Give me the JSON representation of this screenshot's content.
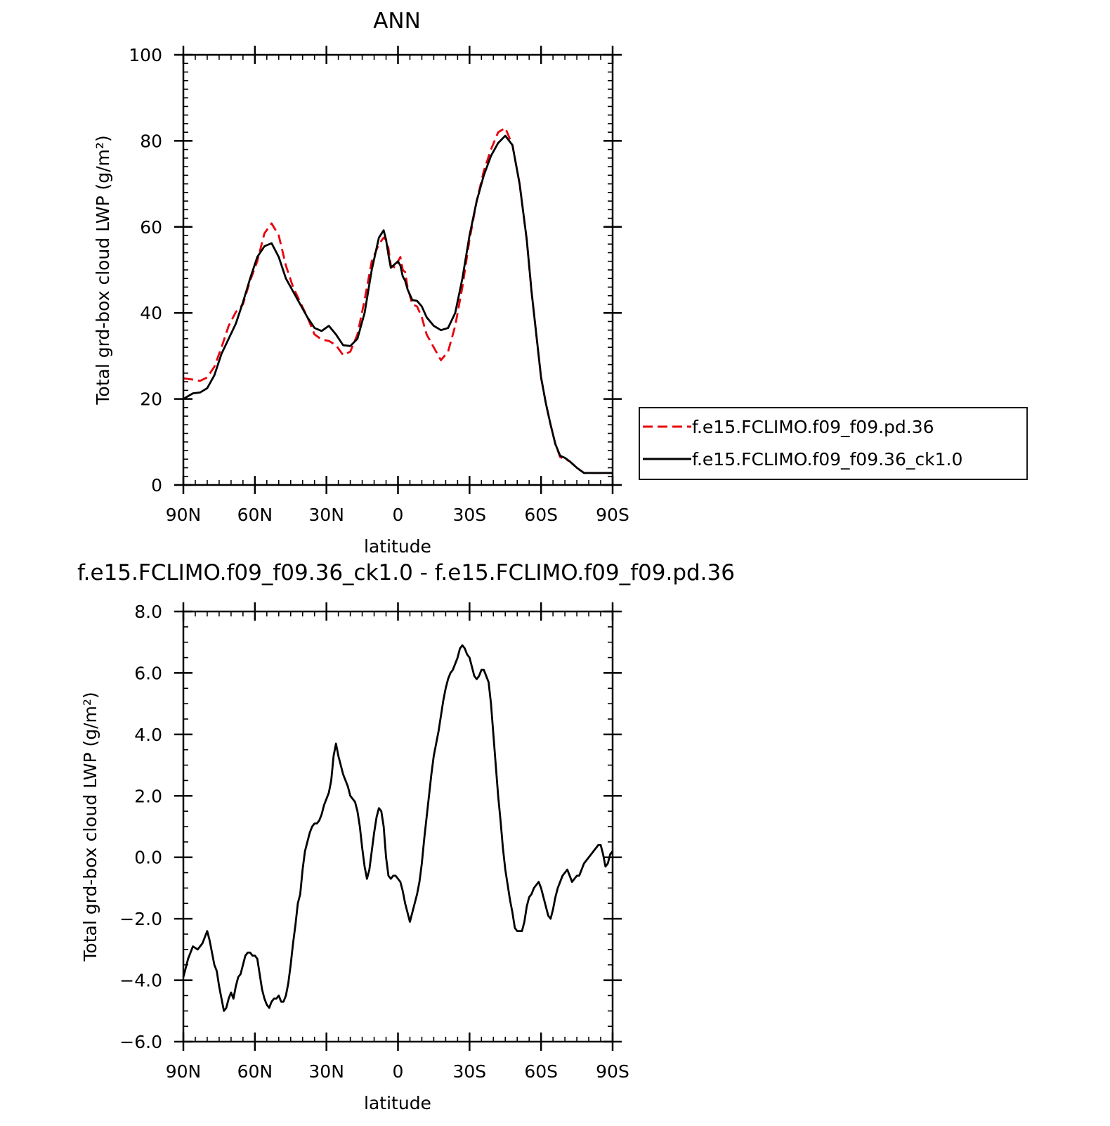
{
  "chart_data": [
    {
      "type": "line",
      "title": "ANN",
      "xlabel": "latitude",
      "ylabel": "Total grd-box cloud LWP (g/m²)",
      "x_tick_labels": [
        "90N",
        "60N",
        "30N",
        "0",
        "30S",
        "60S",
        "90S"
      ],
      "x_ticks": [
        90,
        60,
        30,
        0,
        -30,
        -60,
        -90
      ],
      "xlim": [
        90,
        -90
      ],
      "ylim": [
        0,
        100
      ],
      "y_ticks": [
        0,
        20,
        40,
        60,
        80,
        100
      ],
      "y_tick_labels": [
        "0",
        "20",
        "40",
        "60",
        "80",
        "100"
      ],
      "legend_position": "right",
      "series": [
        {
          "name": "f.e15.FCLIMO.f09_f09.pd.36",
          "color": "#e8000b",
          "style": "dashed",
          "x": [
            90,
            86,
            83,
            80,
            77,
            74,
            71,
            68,
            65,
            62,
            59,
            56,
            53,
            50,
            47,
            44,
            41,
            38,
            35,
            32,
            29,
            26,
            23,
            20,
            17,
            14,
            11,
            8,
            6,
            5,
            4,
            3,
            1,
            0,
            -1,
            -2,
            -3,
            -4,
            -6,
            -8,
            -10,
            -12,
            -15,
            -18,
            -21,
            -24,
            -27,
            -30,
            -33,
            -36,
            -39,
            -42,
            -45,
            -48,
            -51,
            -54,
            -56,
            -58,
            -60,
            -62,
            -64,
            -66,
            -68,
            -70,
            -72,
            -75,
            -78,
            -81,
            -84,
            -87,
            -90
          ],
          "y": [
            24.8,
            24.5,
            24.2,
            25.0,
            27.5,
            32.0,
            37.0,
            40.2,
            42.0,
            47.5,
            52.0,
            58.5,
            60.8,
            58.0,
            51.0,
            46.0,
            42.5,
            39.0,
            35.0,
            33.8,
            33.5,
            32.5,
            30.2,
            31.0,
            35.0,
            43.0,
            52.0,
            56.0,
            57.5,
            57.0,
            55.0,
            51.0,
            50.5,
            52.0,
            53.0,
            50.0,
            49.5,
            46.0,
            42.0,
            41.5,
            39.0,
            35.0,
            32.0,
            29.0,
            31.0,
            37.0,
            46.0,
            57.0,
            66.0,
            73.0,
            78.0,
            82.0,
            83.0,
            79.0,
            70.0,
            57.0,
            45.0,
            35.0,
            25.0,
            19.0,
            14.0,
            9.5,
            6.5,
            6.0,
            5.5,
            4.0,
            2.8,
            2.8,
            2.8,
            2.8,
            2.8
          ]
        },
        {
          "name": "f.e15.FCLIMO.f09_f09.36_ck1.0",
          "color": "#000000",
          "style": "solid",
          "x": [
            90,
            86,
            83,
            80,
            77,
            74,
            71,
            68,
            65,
            62,
            59,
            56,
            53,
            50,
            47,
            44,
            41,
            38,
            35,
            32,
            29,
            26,
            23,
            20,
            17,
            14,
            11,
            8,
            6,
            5,
            4,
            3,
            1,
            0,
            -1,
            -2,
            -3,
            -4,
            -6,
            -8,
            -10,
            -12,
            -15,
            -18,
            -21,
            -24,
            -27,
            -30,
            -33,
            -36,
            -39,
            -42,
            -45,
            -48,
            -51,
            -54,
            -56,
            -58,
            -60,
            -62,
            -64,
            -66,
            -68,
            -70,
            -72,
            -75,
            -78,
            -81,
            -84,
            -87,
            -90
          ],
          "y": [
            20.0,
            21.3,
            21.5,
            22.5,
            25.5,
            30.5,
            34.0,
            37.5,
            42.5,
            48.0,
            53.0,
            55.5,
            56.2,
            53.0,
            48.0,
            45.0,
            42.0,
            39.0,
            36.5,
            35.8,
            37.0,
            35.0,
            32.5,
            32.3,
            34.0,
            40.0,
            50.0,
            57.5,
            59.2,
            57.0,
            53.5,
            50.5,
            51.5,
            52.0,
            51.0,
            48.5,
            47.5,
            45.5,
            43.0,
            42.8,
            41.5,
            39.0,
            37.0,
            36.0,
            36.5,
            40.0,
            48.0,
            58.0,
            66.0,
            72.0,
            76.5,
            79.5,
            81.2,
            79.0,
            70.0,
            57.0,
            45.0,
            35.0,
            25.0,
            19.0,
            14.0,
            9.5,
            6.8,
            6.3,
            5.5,
            4.0,
            2.8,
            2.8,
            2.8,
            2.8,
            2.8
          ]
        }
      ]
    },
    {
      "type": "line",
      "title": "f.e15.FCLIMO.f09_f09.36_ck1.0 - f.e15.FCLIMO.f09_f09.pd.36",
      "xlabel": "latitude",
      "ylabel": "Total grd-box cloud LWP (g/m²)",
      "x_tick_labels": [
        "90N",
        "60N",
        "30N",
        "0",
        "30S",
        "60S",
        "90S"
      ],
      "x_ticks": [
        90,
        60,
        30,
        0,
        -30,
        -60,
        -90
      ],
      "xlim": [
        90,
        -90
      ],
      "ylim": [
        -6,
        8
      ],
      "y_ticks": [
        -6,
        -4,
        -2,
        0,
        2,
        4,
        6,
        8
      ],
      "y_tick_labels": [
        "−6.0",
        "−4.0",
        "−2.0",
        "0.0",
        "2.0",
        "4.0",
        "6.0",
        "8.0"
      ],
      "series": [
        {
          "color": "#000000",
          "style": "solid",
          "x": [
            90,
            88,
            86,
            84,
            82,
            81,
            80,
            79,
            78,
            77,
            76,
            75,
            74,
            73,
            72,
            71,
            70,
            69,
            68,
            67,
            66,
            65,
            64,
            63,
            62,
            61,
            60,
            59,
            58,
            57,
            56,
            55,
            54,
            53,
            52,
            51,
            50,
            49,
            48,
            47,
            46,
            45,
            44,
            43,
            42,
            41,
            40,
            39,
            38,
            37,
            36,
            35,
            34,
            33,
            32,
            31,
            30,
            29,
            28,
            27,
            26,
            25,
            24,
            23,
            22,
            21,
            20,
            19,
            18,
            17,
            16,
            15,
            14,
            13,
            12,
            11,
            10,
            9,
            8,
            7,
            6,
            5,
            4,
            3,
            2,
            1,
            0,
            -1,
            -2,
            -3,
            -4,
            -5,
            -6,
            -7,
            -8,
            -9,
            -10,
            -11,
            -12,
            -13,
            -14,
            -15,
            -16,
            -17,
            -18,
            -19,
            -20,
            -21,
            -22,
            -23,
            -24,
            -25,
            -26,
            -27,
            -28,
            -29,
            -30,
            -31,
            -32,
            -33,
            -34,
            -35,
            -36,
            -37,
            -38,
            -39,
            -40,
            -41,
            -42,
            -43,
            -44,
            -45,
            -46,
            -47,
            -48,
            -49,
            -50,
            -51,
            -52,
            -53,
            -54,
            -55,
            -56,
            -57,
            -58,
            -59,
            -60,
            -61,
            -62,
            -63,
            -64,
            -65,
            -66,
            -67,
            -68,
            -69,
            -70,
            -71,
            -72,
            -73,
            -74,
            -75,
            -76,
            -77,
            -78,
            -79,
            -80,
            -81,
            -82,
            -83,
            -84,
            -85,
            -86,
            -87,
            -88,
            -89,
            -90
          ],
          "y": [
            -3.9,
            -3.3,
            -2.9,
            -3.0,
            -2.8,
            -2.6,
            -2.4,
            -2.7,
            -3.1,
            -3.5,
            -3.7,
            -4.2,
            -4.6,
            -5.0,
            -4.9,
            -4.6,
            -4.4,
            -4.6,
            -4.2,
            -3.9,
            -3.8,
            -3.5,
            -3.2,
            -3.1,
            -3.1,
            -3.2,
            -3.2,
            -3.3,
            -3.8,
            -4.3,
            -4.6,
            -4.8,
            -4.9,
            -4.7,
            -4.6,
            -4.6,
            -4.5,
            -4.7,
            -4.7,
            -4.5,
            -4.1,
            -3.5,
            -2.8,
            -2.2,
            -1.5,
            -1.2,
            -0.4,
            0.2,
            0.5,
            0.8,
            1.0,
            1.1,
            1.1,
            1.2,
            1.4,
            1.7,
            1.9,
            2.1,
            2.5,
            3.3,
            3.7,
            3.3,
            3.0,
            2.7,
            2.5,
            2.3,
            2.0,
            1.9,
            1.8,
            1.5,
            1.0,
            0.3,
            -0.3,
            -0.7,
            -0.4,
            0.2,
            0.8,
            1.3,
            1.6,
            1.5,
            1.0,
            0.0,
            -0.6,
            -0.7,
            -0.6,
            -0.6,
            -0.7,
            -0.8,
            -1.1,
            -1.5,
            -1.8,
            -2.1,
            -1.8,
            -1.5,
            -1.2,
            -0.8,
            -0.2,
            0.6,
            1.3,
            2.0,
            2.7,
            3.3,
            3.7,
            4.1,
            4.6,
            5.1,
            5.5,
            5.8,
            6.0,
            6.1,
            6.3,
            6.5,
            6.8,
            6.9,
            6.8,
            6.6,
            6.5,
            6.2,
            5.9,
            5.8,
            5.9,
            6.1,
            6.1,
            5.9,
            5.7,
            5.0,
            4.0,
            3.0,
            2.0,
            1.2,
            0.3,
            -0.4,
            -0.9,
            -1.4,
            -1.8,
            -2.3,
            -2.4,
            -2.4,
            -2.4,
            -2.1,
            -1.6,
            -1.3,
            -1.2,
            -1.0,
            -0.9,
            -0.8,
            -1.0,
            -1.3,
            -1.6,
            -1.9,
            -2.0,
            -1.7,
            -1.3,
            -1.0,
            -0.8,
            -0.6,
            -0.5,
            -0.4,
            -0.6,
            -0.8,
            -0.7,
            -0.6,
            -0.6,
            -0.4,
            -0.2,
            -0.1,
            0.0,
            0.1,
            0.2,
            0.3,
            0.4,
            0.4,
            0.1,
            -0.3,
            -0.2,
            0.1,
            0.2
          ]
        }
      ]
    }
  ]
}
